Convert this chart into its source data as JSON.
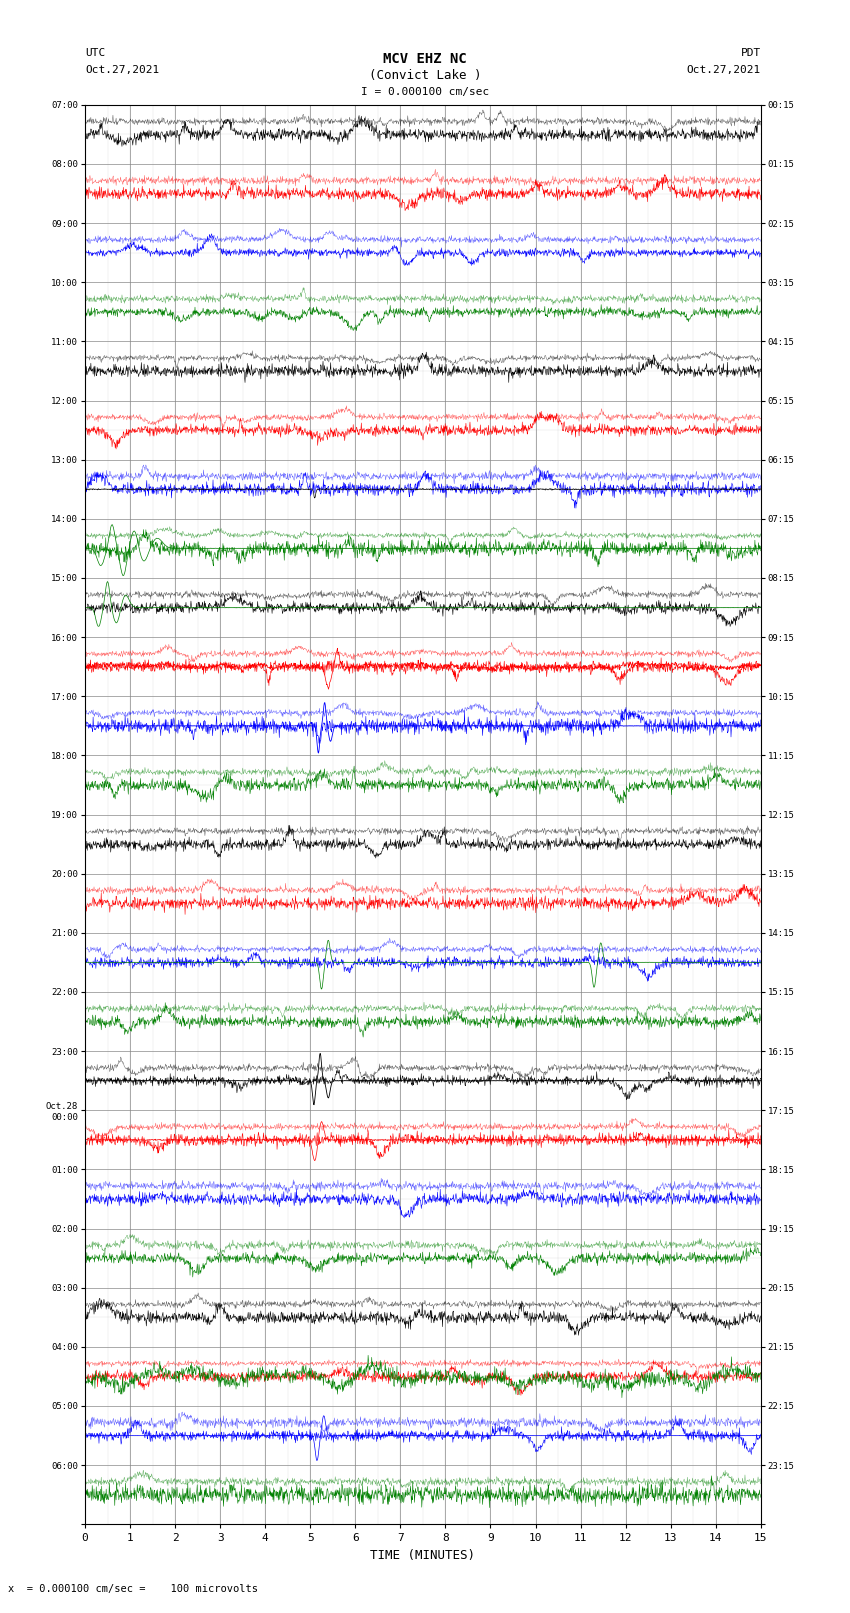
{
  "title_line1": "MCV EHZ NC",
  "title_line2": "(Convict Lake )",
  "scale_label": "I = 0.000100 cm/sec",
  "left_label_top": "UTC",
  "left_label_date": "Oct.27,2021",
  "right_label_top": "PDT",
  "right_label_date": "Oct.27,2021",
  "bottom_label": "TIME (MINUTES)",
  "bottom_note": "x  = 0.000100 cm/sec =    100 microvolts",
  "fig_width": 8.5,
  "fig_height": 16.13,
  "dpi": 100,
  "xmin": 0,
  "xmax": 15,
  "xticks": [
    0,
    1,
    2,
    3,
    4,
    5,
    6,
    7,
    8,
    9,
    10,
    11,
    12,
    13,
    14,
    15
  ],
  "bg_color": "#ffffff",
  "grid_color": "#888888",
  "trace_colors_cycle": [
    "black",
    "red",
    "blue",
    "green"
  ],
  "n_traces": 24,
  "utc_labels": [
    "07:00",
    "08:00",
    "09:00",
    "10:00",
    "11:00",
    "12:00",
    "13:00",
    "14:00",
    "15:00",
    "16:00",
    "17:00",
    "18:00",
    "19:00",
    "20:00",
    "21:00",
    "22:00",
    "23:00",
    "Oct.28\n00:00",
    "01:00",
    "02:00",
    "03:00",
    "04:00",
    "05:00",
    "06:00"
  ],
  "pdt_labels": [
    "00:15",
    "01:15",
    "02:15",
    "03:15",
    "04:15",
    "05:15",
    "06:15",
    "07:15",
    "08:15",
    "09:15",
    "10:15",
    "11:15",
    "12:15",
    "13:15",
    "14:15",
    "15:15",
    "16:15",
    "17:15",
    "18:15",
    "19:15",
    "20:15",
    "21:15",
    "22:15",
    "23:15"
  ]
}
